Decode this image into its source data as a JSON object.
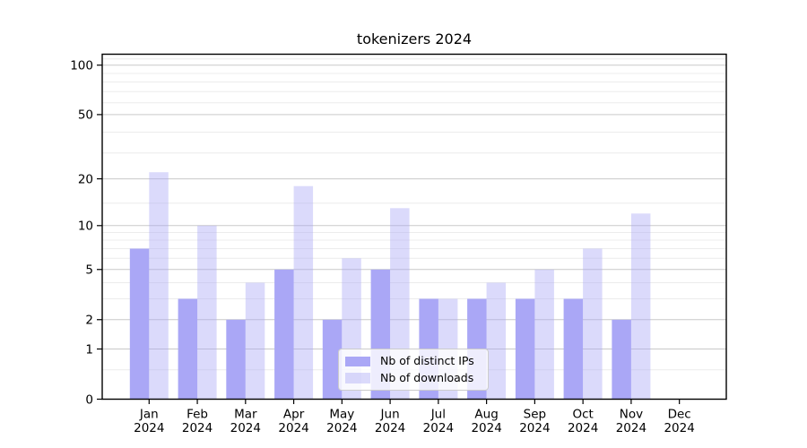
{
  "chart_data": {
    "type": "bar",
    "title": "tokenizers 2024",
    "categories": [
      "Jan",
      "Feb",
      "Mar",
      "Apr",
      "May",
      "Jun",
      "Jul",
      "Aug",
      "Sep",
      "Oct",
      "Nov",
      "Dec"
    ],
    "year_label": "2024",
    "series": [
      {
        "name": "Nb of distinct IPs",
        "color": "#aaa7f6",
        "opacity": 1,
        "values": [
          7,
          3,
          2,
          5,
          2,
          5,
          3,
          3,
          3,
          3,
          2,
          0
        ]
      },
      {
        "name": "Nb of downloads",
        "color": "#aaa7f6",
        "opacity": 0.42,
        "values": [
          22,
          10,
          4,
          18,
          6,
          13,
          3,
          4,
          5,
          7,
          12,
          0
        ]
      }
    ],
    "y_axis": {
      "scale": "log1p",
      "ticks": [
        0,
        1,
        2,
        5,
        10,
        20,
        50,
        100
      ],
      "minor_gridlines": [
        0.5,
        3,
        4,
        6,
        7,
        8,
        9,
        14,
        29,
        39,
        59,
        69,
        79,
        89,
        109
      ],
      "ylim": [
        0,
        117
      ]
    },
    "legend": {
      "position": "lower center"
    },
    "grid": true,
    "colors": {
      "bar_dark_rendered": "#aaa7f6",
      "bar_light_rendered": "#dbdaf9",
      "major_grid": "#c9c9c9",
      "minor_grid": "#ececec",
      "spine": "#000000",
      "background": "#ffffff"
    }
  }
}
